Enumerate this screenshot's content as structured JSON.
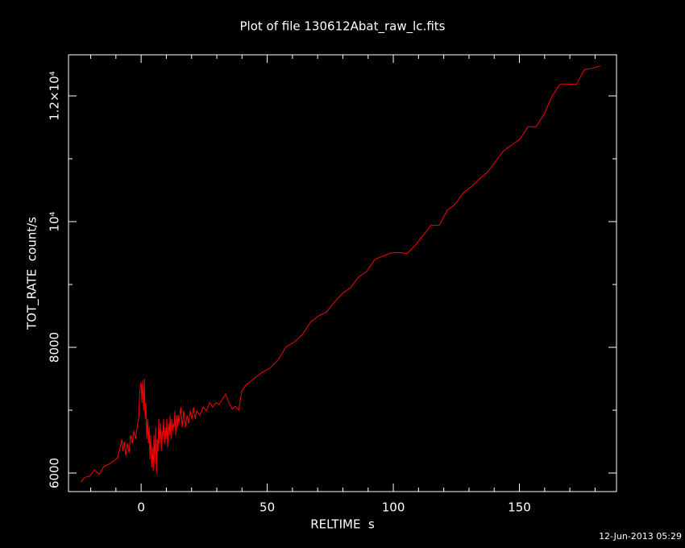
{
  "chart_data": {
    "type": "line",
    "title": "Plot of file 130612Abat_raw_lc.fits",
    "x_label": "RELTIME  s",
    "y_label": "TOT_RATE  count/s",
    "timestamp": "12-Jun-2013 05:29",
    "xlim": [
      -28.8,
      188.5
    ],
    "ylim": [
      5705,
      12654
    ],
    "xticks": [
      0,
      50,
      100,
      150
    ],
    "yticks": [
      6000,
      8000,
      {
        "value": 10000,
        "label": "10⁴"
      },
      {
        "value": 12000,
        "label": "1.2×10⁴"
      }
    ],
    "xminorticks": [
      -20,
      -10,
      10,
      20,
      30,
      40,
      60,
      70,
      80,
      90,
      110,
      120,
      130,
      140,
      160,
      170,
      180
    ],
    "yminorticks": [
      7000,
      9000,
      11000
    ],
    "series": [
      {
        "color": "#ff0000",
        "x": [
          -23.8,
          -22.4,
          -20.4,
          -18.5,
          -16.6,
          -14.7,
          -12.8,
          -10.9,
          -9.4,
          -8.3,
          -7.7,
          -7.3,
          -6.7,
          -6.1,
          -5.4,
          -4.8,
          -4.2,
          -3.5,
          -2.9,
          -2.2,
          -1.6,
          -1.0,
          -0.6,
          -0.3,
          0.0,
          0.3,
          0.6,
          1.0,
          1.3,
          1.6,
          1.9,
          2.2,
          2.6,
          2.9,
          3.2,
          3.5,
          3.8,
          4.2,
          4.5,
          4.8,
          5.1,
          5.4,
          5.8,
          6.1,
          6.4,
          6.7,
          7.0,
          7.3,
          7.7,
          8.0,
          8.3,
          8.6,
          8.9,
          9.3,
          9.6,
          9.9,
          10.2,
          10.5,
          10.9,
          11.2,
          11.5,
          11.8,
          12.1,
          12.5,
          12.8,
          13.1,
          13.4,
          13.7,
          14.1,
          14.4,
          14.7,
          15.0,
          15.7,
          16.3,
          16.9,
          17.6,
          18.2,
          18.8,
          19.5,
          20.1,
          20.8,
          21.4,
          22.0,
          23.3,
          24.6,
          25.9,
          27.2,
          28.4,
          29.7,
          31.0,
          32.3,
          33.5,
          34.8,
          36.1,
          37.4,
          38.7,
          39.9,
          41.5,
          44.7,
          47.9,
          51.1,
          54.3,
          57.5,
          60.7,
          63.9,
          67.1,
          70.3,
          73.5,
          76.7,
          79.9,
          83.1,
          86.3,
          89.5,
          92.7,
          95.8,
          99.0,
          102.2,
          105.4,
          108.6,
          111.8,
          115.0,
          118.2,
          121.4,
          124.6,
          127.8,
          131.0,
          134.2,
          137.4,
          140.6,
          143.8,
          147.0,
          150.2,
          153.4,
          156.6,
          159.8,
          163.0,
          166.2,
          169.4,
          172.6,
          175.8,
          179.0,
          182.2
        ],
        "values": [
          5860,
          5930,
          5950,
          6050,
          5980,
          6110,
          6140,
          6190,
          6240,
          6410,
          6540,
          6350,
          6500,
          6280,
          6470,
          6320,
          6600,
          6470,
          6670,
          6540,
          6730,
          6860,
          7240,
          7370,
          7440,
          7120,
          7470,
          6990,
          7500,
          6860,
          7120,
          6540,
          6860,
          6470,
          6730,
          6220,
          6600,
          6090,
          6410,
          6030,
          6600,
          6150,
          6730,
          5990,
          6540,
          6350,
          6860,
          6470,
          6790,
          6350,
          6670,
          6540,
          6860,
          6470,
          6730,
          6540,
          6860,
          6410,
          6790,
          6600,
          6920,
          6540,
          6860,
          6670,
          6790,
          6730,
          6990,
          6600,
          6920,
          6730,
          6920,
          6790,
          7050,
          6730,
          6990,
          6730,
          6920,
          6790,
          6990,
          6860,
          7050,
          6860,
          6990,
          6920,
          7050,
          6990,
          7120,
          7050,
          7120,
          7090,
          7180,
          7260,
          7120,
          7020,
          7060,
          7000,
          7300,
          7400,
          7500,
          7600,
          7670,
          7800,
          8010,
          8080,
          8200,
          8400,
          8500,
          8560,
          8720,
          8860,
          8950,
          9120,
          9210,
          9400,
          9450,
          9500,
          9510,
          9490,
          9620,
          9780,
          9940,
          9940,
          10180,
          10280,
          10460,
          10560,
          10680,
          10790,
          10960,
          11130,
          11220,
          11310,
          11510,
          11510,
          11710,
          12000,
          12190,
          12190,
          12180,
          12420,
          12440,
          12480
        ]
      }
    ]
  }
}
